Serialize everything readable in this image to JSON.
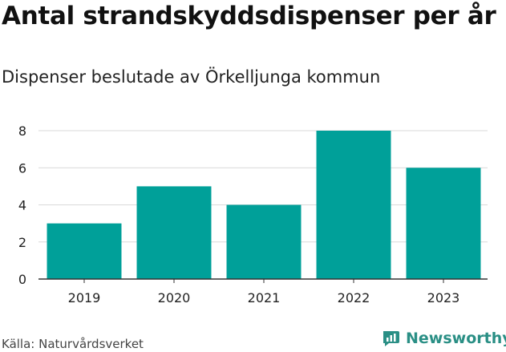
{
  "title": "Antal strandskyddsdispenser per år",
  "subtitle": "Dispenser beslutade av Örkelljunga kommun",
  "source": "Källa: Naturvårdsverket",
  "brand": {
    "name": "Newsworthy",
    "icon": "newsworthy-logo-icon",
    "color": "#2a8f85"
  },
  "colors": {
    "bar": "#00a099",
    "grid": "#d9d9d9",
    "axis": "#333333",
    "text": "#222222"
  },
  "chart_data": {
    "type": "bar",
    "title": "Antal strandskyddsdispenser per år",
    "subtitle": "Dispenser beslutade av Örkelljunga kommun",
    "categories": [
      "2019",
      "2020",
      "2021",
      "2022",
      "2023"
    ],
    "values": [
      3,
      5,
      4,
      8,
      6
    ],
    "xlabel": "",
    "ylabel": "",
    "ylim": [
      0,
      8
    ],
    "yticks": [
      0,
      2,
      4,
      6,
      8
    ],
    "grid": true,
    "legend": "none"
  }
}
